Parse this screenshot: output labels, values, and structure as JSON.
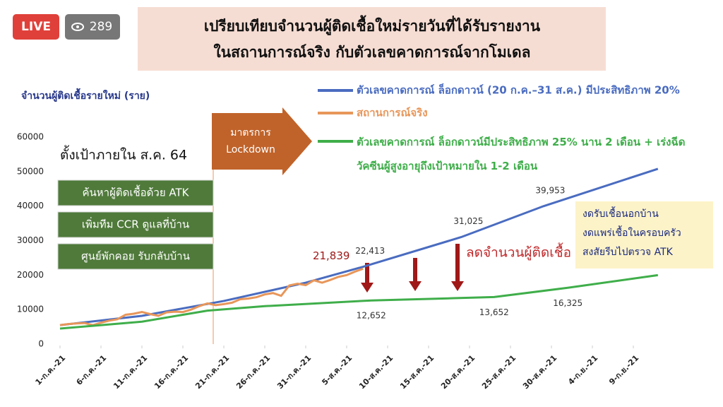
{
  "badge": {
    "live": "LIVE",
    "viewers": "289"
  },
  "chart_data": {
    "type": "line",
    "title": [
      "เปรียบเทียบจำนวนผู้ติดเชื้อใหม่รายวันที่ได้รับรายงาน",
      "ในสถานการณ์จริง กับตัวเลขคาดการณ์จากโมเดล"
    ],
    "ylabel": "จำนวนผู้ติดเชื้อรายใหม่ (ราย)",
    "xlim": [
      0,
      74
    ],
    "xticks": [
      {
        "value": 0,
        "label": "1-ก.ค.-21"
      },
      {
        "value": 5,
        "label": "6-ก.ค.-21"
      },
      {
        "value": 10,
        "label": "11-ก.ค.-21"
      },
      {
        "value": 15,
        "label": "16-ก.ค.-21"
      },
      {
        "value": 20,
        "label": "21-ก.ค.-21"
      },
      {
        "value": 25,
        "label": "26-ก.ค.-21"
      },
      {
        "value": 30,
        "label": "31-ก.ค.-21"
      },
      {
        "value": 35,
        "label": "5-ส.ค.-21"
      },
      {
        "value": 40,
        "label": "10-ส.ค.-21"
      },
      {
        "value": 45,
        "label": "15-ส.ค.-21"
      },
      {
        "value": 50,
        "label": "20-ส.ค.-21"
      },
      {
        "value": 55,
        "label": "25-ส.ค.-21"
      },
      {
        "value": 60,
        "label": "30-ส.ค.-21"
      },
      {
        "value": 65,
        "label": "4-ก.ย.-21"
      },
      {
        "value": 70,
        "label": "9-ก.ย.-21"
      }
    ],
    "ylim": [
      0,
      60000
    ],
    "yticks": [
      0,
      10000,
      20000,
      30000,
      40000,
      50000,
      60000
    ],
    "series": [
      {
        "name": "ตัวเลขคาดการณ์ ล็อกดาวน์ (20 ก.ค.–31 ส.ค.) มีประสิทธิภาพ 20%",
        "color": "#4a6cc0",
        "x": [
          0,
          10,
          20,
          30,
          37,
          49,
          59,
          73
        ],
        "values": [
          5500,
          8200,
          12500,
          17800,
          22413,
          31025,
          39953,
          50800
        ],
        "value_labels": [
          null,
          null,
          null,
          null,
          "22,413",
          "31,025",
          "39,953",
          null
        ]
      },
      {
        "name": "สถานการณ์จริง",
        "color": "#e8965a",
        "x": [
          0,
          1,
          2,
          3,
          4,
          5,
          6,
          7,
          8,
          9,
          10,
          11,
          12,
          13,
          14,
          15,
          16,
          17,
          18,
          19,
          20,
          21,
          22,
          23,
          24,
          25,
          26,
          27,
          28,
          29,
          30,
          31,
          32,
          33,
          34,
          35,
          36,
          37
        ],
        "values": [
          5500,
          5800,
          6000,
          6100,
          5500,
          6200,
          6800,
          7200,
          8500,
          8800,
          9300,
          8700,
          8200,
          9200,
          9400,
          9300,
          10000,
          11000,
          11800,
          11300,
          11600,
          12000,
          13000,
          13200,
          13600,
          14400,
          14800,
          14000,
          17000,
          17500,
          17100,
          18500,
          17800,
          18600,
          19500,
          20000,
          21000,
          21839
        ],
        "value_labels": [
          null,
          null,
          null,
          null,
          null,
          null,
          null,
          null,
          null,
          null,
          null,
          null,
          null,
          null,
          null,
          null,
          null,
          null,
          null,
          null,
          null,
          null,
          null,
          null,
          null,
          null,
          null,
          null,
          null,
          null,
          null,
          null,
          null,
          null,
          null,
          null,
          null,
          "21,839"
        ]
      },
      {
        "name": "ตัวเลขคาดการณ์ ล็อกดาวน์มีประสิทธิภาพ 25% นาน 2 เดือน + เร่งฉีดวัคซีนผู้สูงอายุถึงเป้าหมายใน 1-2 เดือน",
        "color": "#3fae4a",
        "x": [
          0,
          10,
          18,
          25,
          38,
          48,
          53,
          62,
          73
        ],
        "values": [
          4500,
          6500,
          9700,
          11000,
          12652,
          13300,
          13652,
          16325,
          20000
        ],
        "value_labels": [
          null,
          null,
          null,
          null,
          "12,652",
          null,
          "13,652",
          "16,325",
          null
        ]
      }
    ],
    "annotations": {
      "target": "ตั้งเป้าภายใน ส.ค. 64",
      "boxes": [
        "ค้นหาผู้ติดเชื้อด้วย ATK",
        "เพิ่มทีม CCR ดูแลที่บ้าน",
        "ศูนย์พักคอย รับกลับบ้าน"
      ],
      "lockdown": [
        "มาตรการ",
        "Lockdown"
      ],
      "reduce": "ลดจำนวนผู้ติดเชื้อ",
      "bullets": [
        "งดรับเชื้อนอกบ้าน",
        "งดแพร่เชื้อในครอบครัว",
        "สงสัยรีบไปตรวจ ATK"
      ]
    }
  }
}
